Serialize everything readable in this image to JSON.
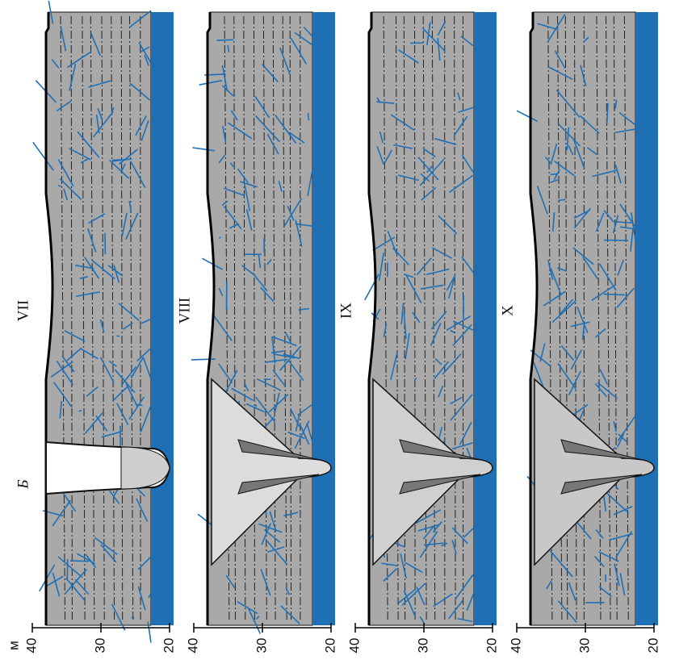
{
  "figure": {
    "unit": "м",
    "panels": [
      {
        "section": "Б",
        "stage": "VII",
        "ticks": [
          40,
          30,
          20
        ]
      },
      {
        "stage": "VIII",
        "ticks": [
          40,
          30,
          20
        ]
      },
      {
        "stage": "IX",
        "ticks": [
          40,
          30,
          20
        ]
      },
      {
        "stage": "X",
        "ticks": [
          40,
          30,
          20
        ]
      }
    ]
  }
}
